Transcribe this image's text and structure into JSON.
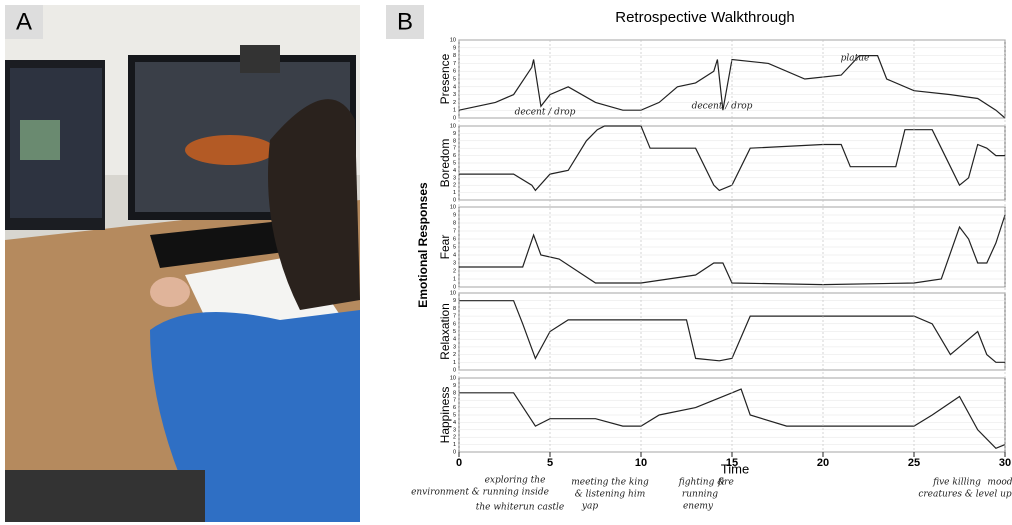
{
  "panels": {
    "a": "A",
    "b": "B"
  },
  "figure": {
    "title": "Retrospective Walkthrough",
    "ylabel": "Emotional Responses",
    "xlabel": "Time",
    "annotations": [
      "decent / drop",
      "decent / drop",
      "platue",
      "exploring the",
      "environment & running inside",
      "the whiterun castle",
      "meeting the king",
      "& listening him",
      "yap",
      "fighting &",
      "running",
      "enemy",
      "fire",
      "five killing",
      "mood",
      "creatures & level up"
    ]
  },
  "chart_data": [
    {
      "type": "line",
      "ylabel": "Presence",
      "color": "#222",
      "xlim": [
        0,
        30
      ],
      "ylim": [
        0,
        10
      ],
      "yticks": [
        0,
        1,
        2,
        3,
        4,
        5,
        6,
        7,
        8,
        9,
        10
      ],
      "x": [
        0,
        2,
        3,
        4,
        4.1,
        4.5,
        5,
        6,
        7.5,
        9,
        10,
        11,
        12,
        13,
        14,
        14.2,
        14.5,
        15,
        17,
        19,
        21,
        22,
        23,
        23.5,
        25,
        27,
        28.5,
        29.5,
        30
      ],
      "values": [
        1,
        2,
        3,
        6.5,
        7.5,
        1.5,
        3,
        4,
        2,
        1,
        1,
        2,
        4,
        4.5,
        6,
        7.5,
        1,
        7.5,
        7,
        5,
        5.5,
        8,
        8,
        5,
        3.5,
        3,
        2.5,
        1,
        0
      ]
    },
    {
      "type": "line",
      "ylabel": "Boredom",
      "color": "#222",
      "xlim": [
        0,
        30
      ],
      "ylim": [
        0,
        10
      ],
      "yticks": [
        0,
        1,
        2,
        3,
        4,
        5,
        6,
        7,
        8,
        9,
        10
      ],
      "x": [
        0,
        3,
        4,
        4.2,
        5,
        6,
        7,
        7.6,
        8,
        10,
        10.5,
        13,
        14,
        14.3,
        15,
        16,
        20,
        21,
        21.5,
        24,
        24.5,
        26,
        26.5,
        27.5,
        28,
        28.5,
        29,
        29.5,
        30
      ],
      "values": [
        3.5,
        3.5,
        2,
        1.3,
        3.5,
        4,
        8,
        9.5,
        10,
        10,
        7,
        7,
        2,
        1.3,
        2,
        7,
        7.5,
        7.5,
        4.5,
        4.5,
        9.5,
        9.5,
        7,
        2,
        3,
        7.5,
        7,
        6,
        6
      ]
    },
    {
      "type": "line",
      "ylabel": "Fear",
      "color": "#222",
      "xlim": [
        0,
        30
      ],
      "ylim": [
        0,
        10
      ],
      "yticks": [
        0,
        1,
        2,
        3,
        4,
        5,
        6,
        7,
        8,
        9,
        10
      ],
      "x": [
        0,
        3.5,
        4.1,
        4.5,
        5.5,
        7.5,
        10,
        13,
        14,
        14.5,
        15,
        20,
        25,
        26.5,
        27.5,
        28,
        28.5,
        29,
        29.5,
        30
      ],
      "values": [
        2.5,
        2.5,
        6.5,
        4,
        3.5,
        0.5,
        0.5,
        1.5,
        3,
        3,
        0.5,
        0.3,
        0.5,
        1,
        7.5,
        6,
        3,
        3,
        5.5,
        9
      ]
    },
    {
      "type": "line",
      "ylabel": "Relaxation",
      "color": "#222",
      "xlim": [
        0,
        30
      ],
      "ylim": [
        0,
        10
      ],
      "yticks": [
        0,
        1,
        2,
        3,
        4,
        5,
        6,
        7,
        8,
        9,
        10
      ],
      "x": [
        0,
        3,
        3.5,
        4.2,
        5,
        6,
        7.5,
        12.5,
        13,
        14.3,
        15,
        16,
        25,
        26,
        27,
        27.5,
        28.5,
        29,
        29.5,
        30
      ],
      "values": [
        9,
        9,
        6,
        1.5,
        5,
        6.5,
        6.5,
        6.5,
        1.5,
        1.2,
        1.5,
        7,
        7,
        6,
        2,
        3,
        5,
        2,
        1,
        1
      ]
    },
    {
      "type": "line",
      "ylabel": "Happiness",
      "color": "#222",
      "xlim": [
        0,
        30
      ],
      "ylim": [
        0,
        10
      ],
      "yticks": [
        0,
        1,
        2,
        3,
        4,
        5,
        6,
        7,
        8,
        9,
        10
      ],
      "xticks": [
        0,
        5,
        10,
        15,
        20,
        25,
        30
      ],
      "x": [
        0,
        3,
        4.2,
        5,
        7.5,
        9,
        10,
        11,
        13,
        14,
        15,
        15.5,
        16,
        18,
        25,
        26,
        27.5,
        28.5,
        29.5,
        30
      ],
      "values": [
        8,
        8,
        3.5,
        4.5,
        4.5,
        3.5,
        3.5,
        5,
        6,
        7,
        8,
        8.5,
        5,
        3.5,
        3.5,
        5,
        7.5,
        3,
        0.5,
        1
      ]
    }
  ]
}
